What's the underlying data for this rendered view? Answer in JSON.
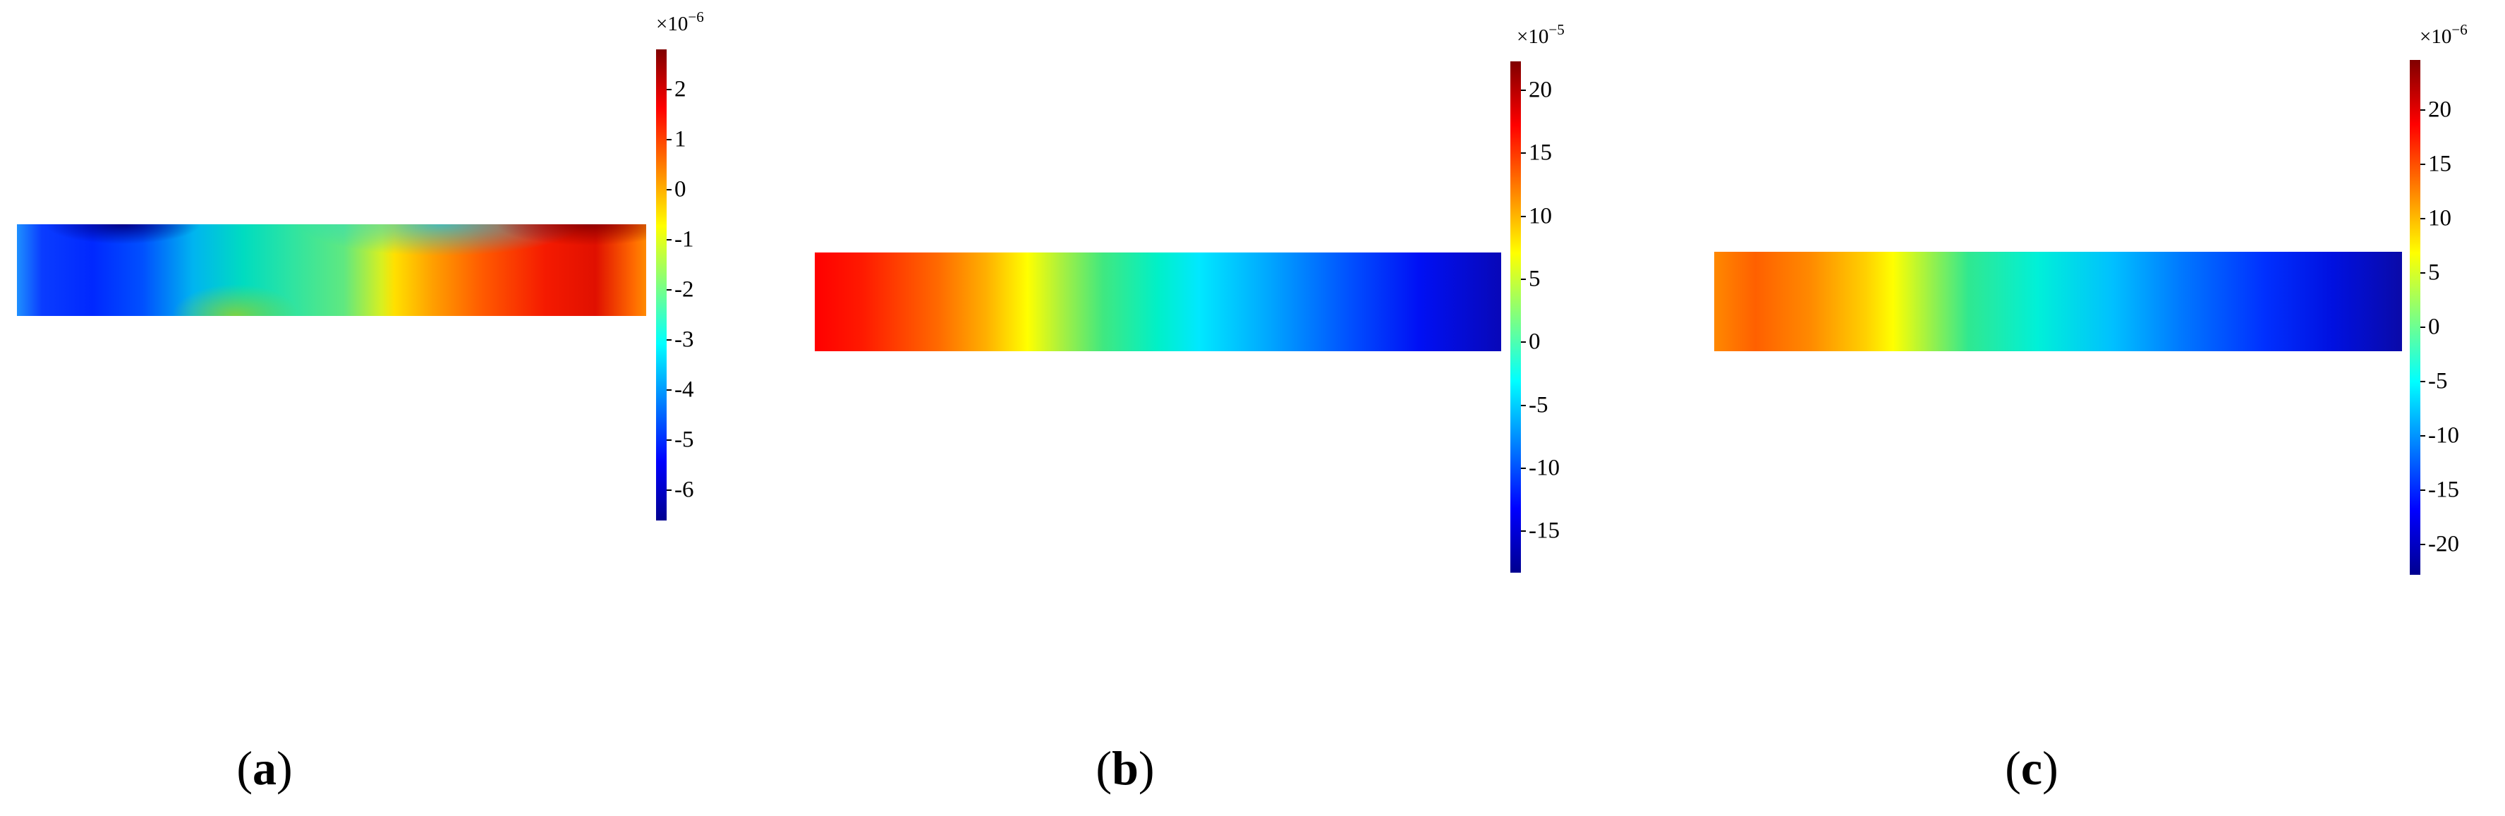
{
  "chart_data": [
    {
      "type": "heatmap",
      "panel_label": "a",
      "colormap": "jet",
      "colorbar": {
        "exponent_base": "×10",
        "exponent": "−6",
        "range": [
          -6.6,
          2.8
        ],
        "ticks": [
          2,
          1,
          0,
          -1,
          -2,
          -3,
          -4,
          -5,
          -6
        ],
        "tick_labels": [
          "2",
          "1",
          "0",
          "-1",
          "-2",
          "-3",
          "-4",
          "-5",
          "-6"
        ]
      }
    },
    {
      "type": "heatmap",
      "panel_label": "b",
      "colormap": "jet",
      "colorbar": {
        "exponent_base": "×10",
        "exponent": "−5",
        "range": [
          -18.3,
          22.3
        ],
        "ticks": [
          20,
          15,
          10,
          5,
          0,
          -5,
          -10,
          -15
        ],
        "tick_labels": [
          "20",
          "15",
          "10",
          "5",
          "0",
          "-5",
          "-10",
          "-15"
        ]
      }
    },
    {
      "type": "heatmap",
      "panel_label": "c",
      "colormap": "jet",
      "colorbar": {
        "exponent_base": "×10",
        "exponent": "−6",
        "range": [
          -22.8,
          24.6
        ],
        "ticks": [
          20,
          15,
          10,
          5,
          0,
          -5,
          -10,
          -15,
          -20
        ],
        "tick_labels": [
          "20",
          "15",
          "10",
          "5",
          "0",
          "-5",
          "-10",
          "-15",
          "-20"
        ]
      }
    }
  ]
}
